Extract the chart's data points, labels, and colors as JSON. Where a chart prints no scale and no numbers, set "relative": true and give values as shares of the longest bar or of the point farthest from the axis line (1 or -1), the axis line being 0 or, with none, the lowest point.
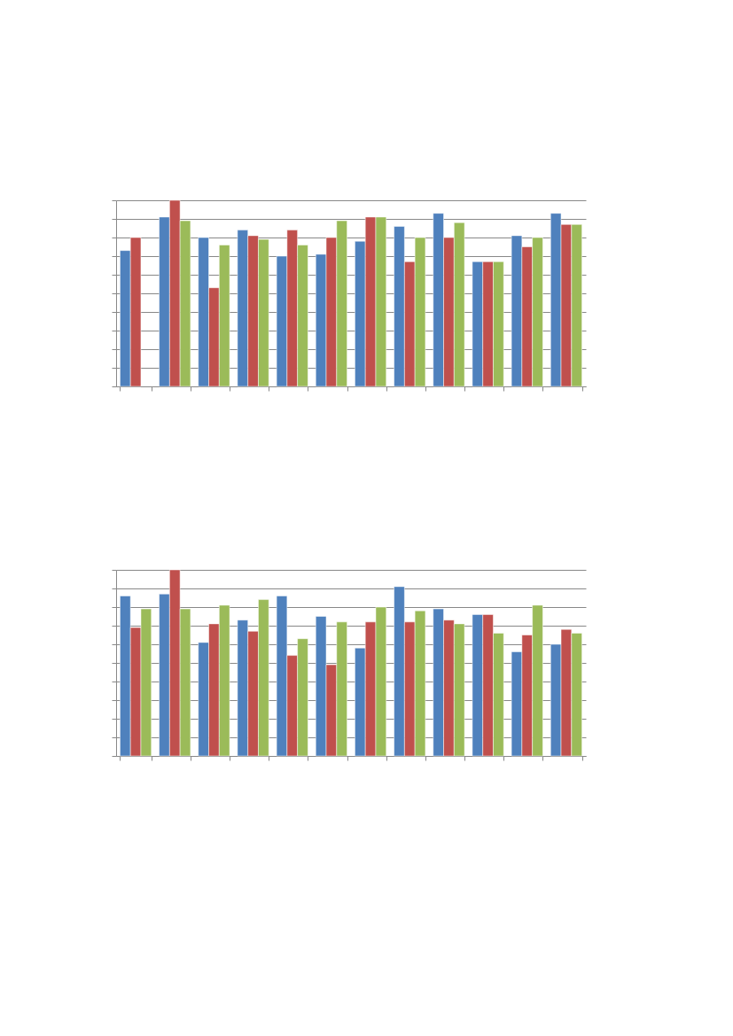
{
  "chart_data": [
    {
      "type": "bar",
      "relative": true,
      "grid": "y",
      "tick_labels": false,
      "categories": [
        null,
        null,
        null,
        null,
        null,
        null,
        null,
        null,
        null,
        null,
        null,
        null
      ],
      "series": [
        {
          "color": "#4f81bd",
          "values": [
            0.73,
            0.91,
            0.8,
            0.84,
            0.7,
            0.71,
            0.78,
            0.86,
            0.93,
            0.67,
            0.81,
            0.93
          ]
        },
        {
          "color": "#c0504d",
          "values": [
            0.8,
            1,
            0.53,
            0.81,
            0.84,
            0.8,
            0.91,
            0.67,
            0.8,
            0.67,
            0.75,
            0.87
          ]
        },
        {
          "color": "#9bbb59",
          "values": [
            null,
            0.89,
            0.76,
            0.79,
            0.76,
            0.89,
            0.91,
            0.8,
            0.88,
            0.67,
            0.8,
            0.87
          ]
        }
      ]
    },
    {
      "type": "bar",
      "relative": true,
      "grid": "y",
      "tick_labels": false,
      "categories": [
        null,
        null,
        null,
        null,
        null,
        null,
        null,
        null,
        null,
        null,
        null,
        null
      ],
      "series": [
        {
          "color": "#4f81bd",
          "values": [
            0.86,
            0.87,
            0.61,
            0.73,
            0.86,
            0.75,
            0.58,
            0.91,
            0.79,
            0.76,
            0.56,
            0.6
          ]
        },
        {
          "color": "#c0504d",
          "values": [
            0.69,
            1,
            0.71,
            0.67,
            0.54,
            0.49,
            0.72,
            0.72,
            0.73,
            0.76,
            0.65,
            0.68
          ]
        },
        {
          "color": "#9bbb59",
          "values": [
            0.79,
            0.79,
            0.81,
            0.84,
            0.63,
            0.72,
            0.8,
            0.78,
            0.71,
            0.66,
            0.81,
            0.66
          ]
        }
      ]
    }
  ]
}
